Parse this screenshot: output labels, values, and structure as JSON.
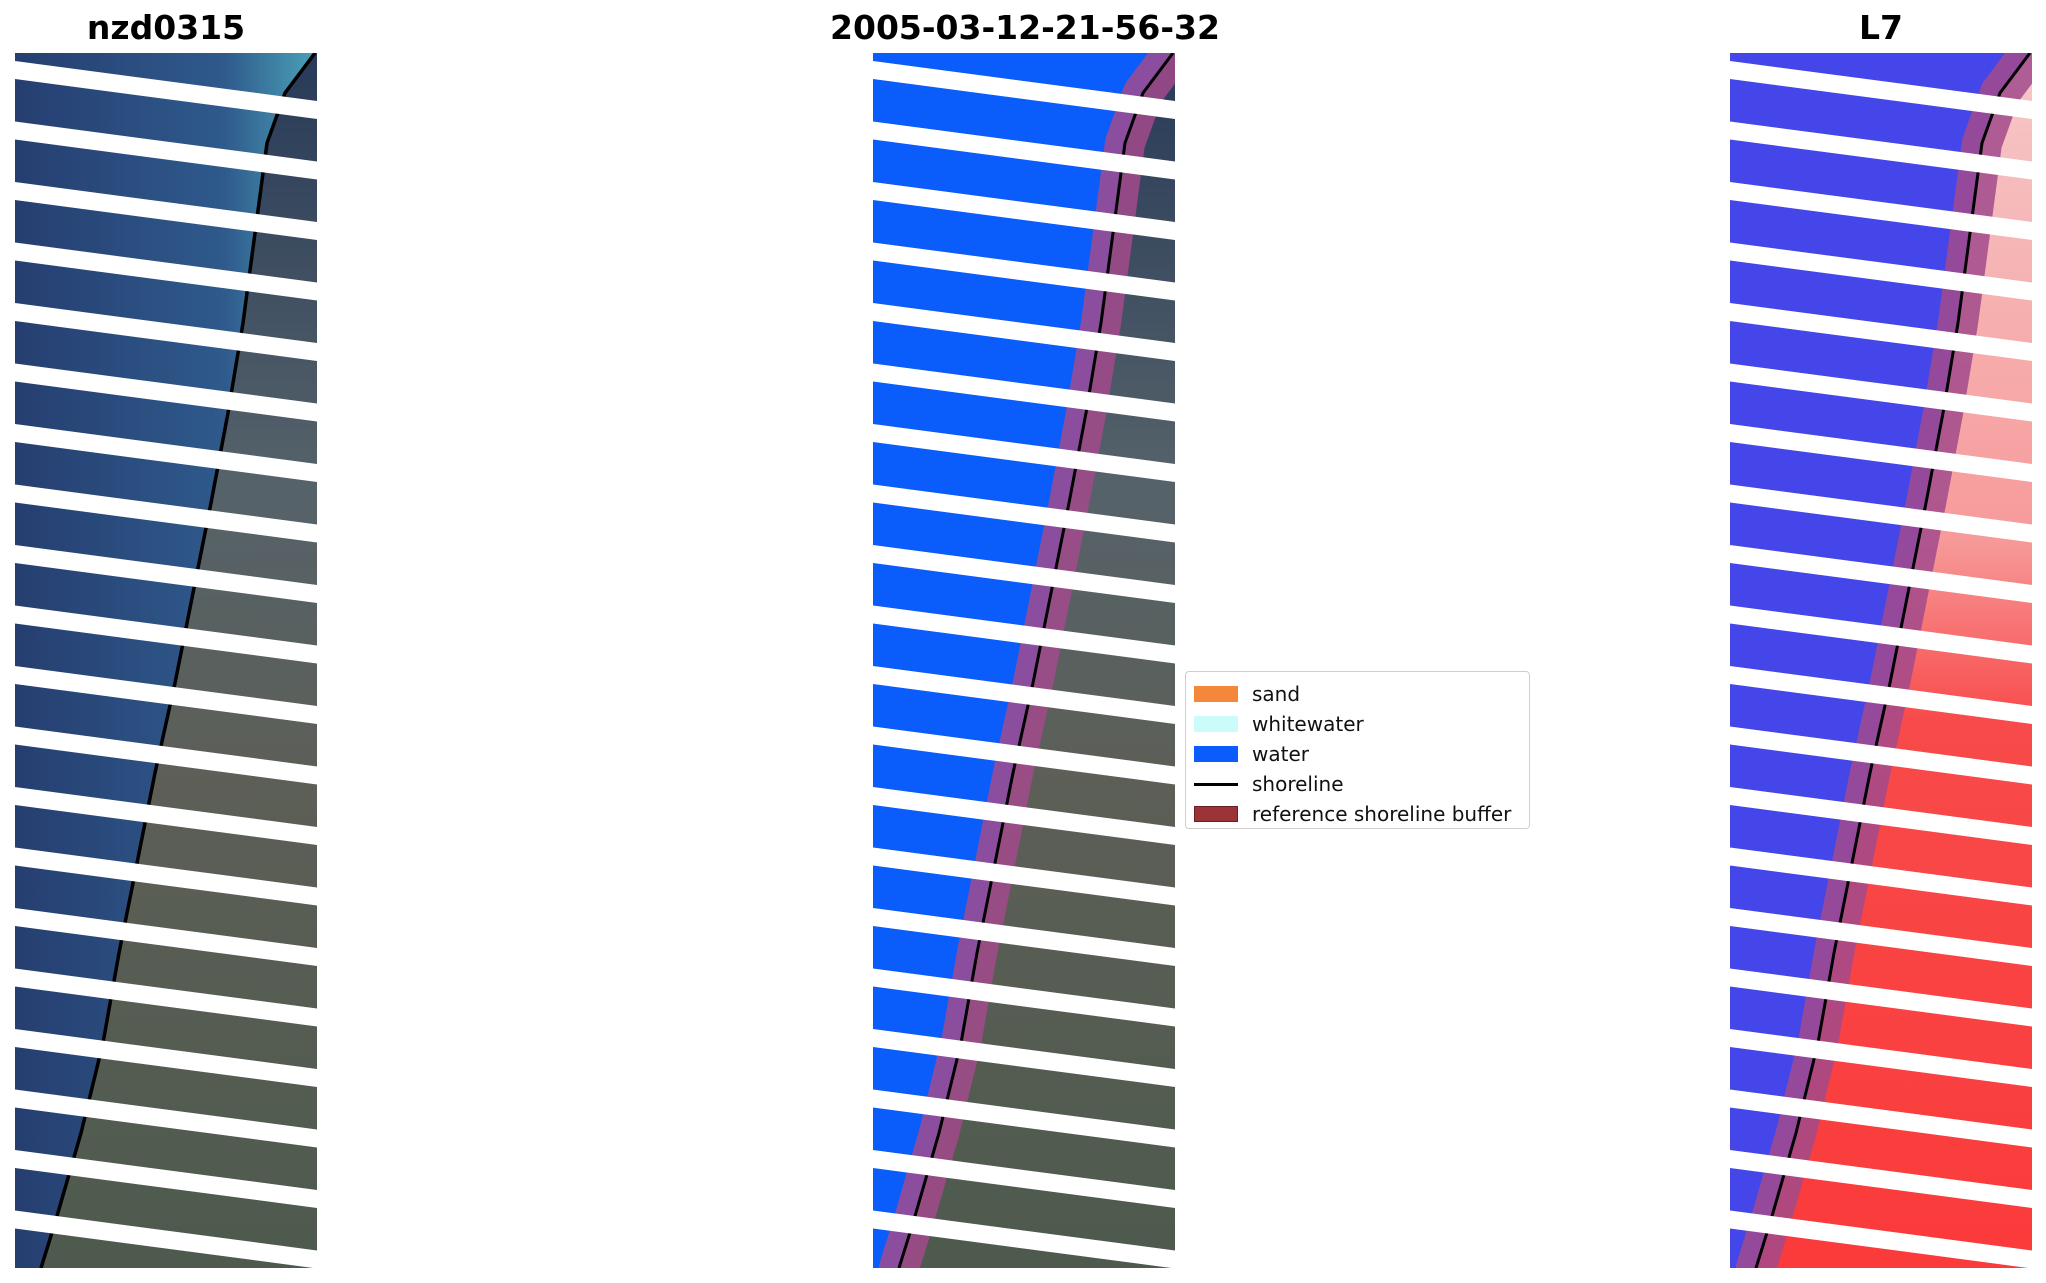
{
  "titles": {
    "left": "nzd0315",
    "middle": "2005-03-12-21-56-32",
    "right": "L7"
  },
  "legend": {
    "items": [
      {
        "label": "sand",
        "kind": "patch",
        "color": "#f4883a"
      },
      {
        "label": "whitewater",
        "kind": "patch",
        "color": "#ccfcfa"
      },
      {
        "label": "water",
        "kind": "patch",
        "color": "#0a5cfb"
      },
      {
        "label": "shoreline",
        "kind": "line",
        "color": "#000000"
      },
      {
        "label": "reference shoreline buffer",
        "kind": "patch",
        "color": "#9b3337",
        "edge": "#6b1f22"
      }
    ]
  },
  "colors": {
    "ocean": "#284878",
    "ocean_near_shore": "#3d82a6",
    "land": "#4b5a63",
    "classified_water": "#0a5cfb",
    "index_water": "#4446ea",
    "index_land": "#fa4545",
    "buffer": "#a24a8c",
    "shoreline": "#000000"
  }
}
